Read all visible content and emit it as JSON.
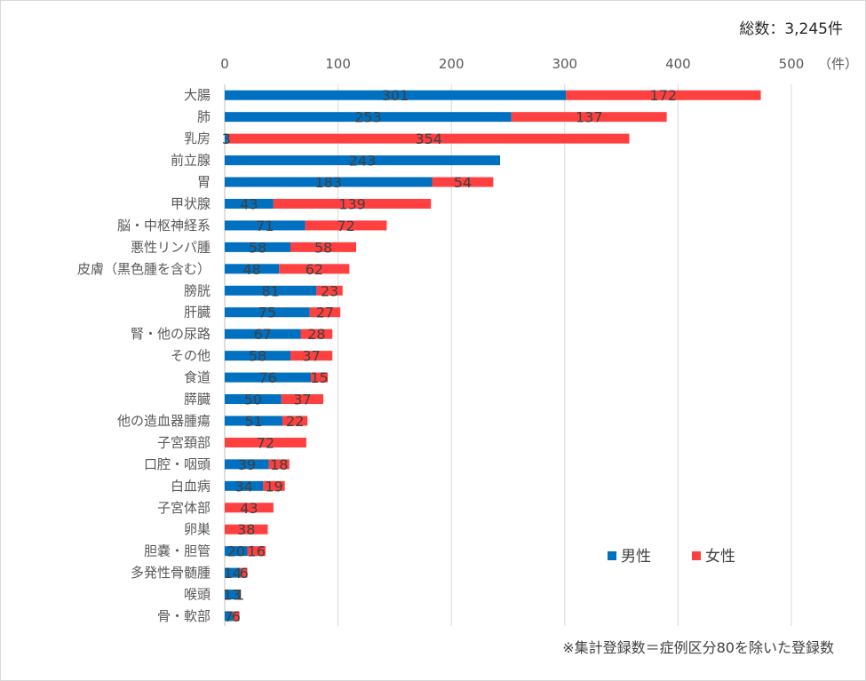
{
  "summary": {
    "total_label": "総数：3,245件"
  },
  "footnote": "※集計登録数＝症例区分80を除いた登録数",
  "chart_data": {
    "type": "bar",
    "orientation": "horizontal",
    "stacked": true,
    "categories": [
      "大腸",
      "肺",
      "乳房",
      "前立腺",
      "胃",
      "甲状腺",
      "脳・中枢神経系",
      "悪性リンパ腫",
      "皮膚（黒色腫を含む）",
      "膀胱",
      "肝臓",
      "腎・他の尿路",
      "その他",
      "食道",
      "膵臓",
      "他の造血器腫瘍",
      "子宮頚部",
      "口腔・咽頭",
      "白血病",
      "子宮体部",
      "卵巣",
      "胆嚢・胆管",
      "多発性骨髄腫",
      "喉頭",
      "骨・軟部"
    ],
    "series": [
      {
        "name": "男性",
        "color": "#0070C0",
        "values": [
          301,
          253,
          3,
          243,
          183,
          43,
          71,
          58,
          48,
          81,
          75,
          67,
          58,
          76,
          50,
          51,
          0,
          39,
          34,
          0,
          0,
          20,
          14,
          13,
          7
        ]
      },
      {
        "name": "女性",
        "color": "#FF4040",
        "values": [
          172,
          137,
          354,
          0,
          54,
          139,
          72,
          58,
          62,
          23,
          27,
          28,
          37,
          15,
          37,
          22,
          72,
          18,
          19,
          43,
          38,
          16,
          6,
          1,
          6
        ]
      }
    ],
    "xlim": [
      0,
      500
    ],
    "xticks": [
      "0",
      "100",
      "200",
      "300",
      "400",
      "500"
    ],
    "x_unit": "（件）",
    "grid": true,
    "legend_position": "bottom-right"
  }
}
